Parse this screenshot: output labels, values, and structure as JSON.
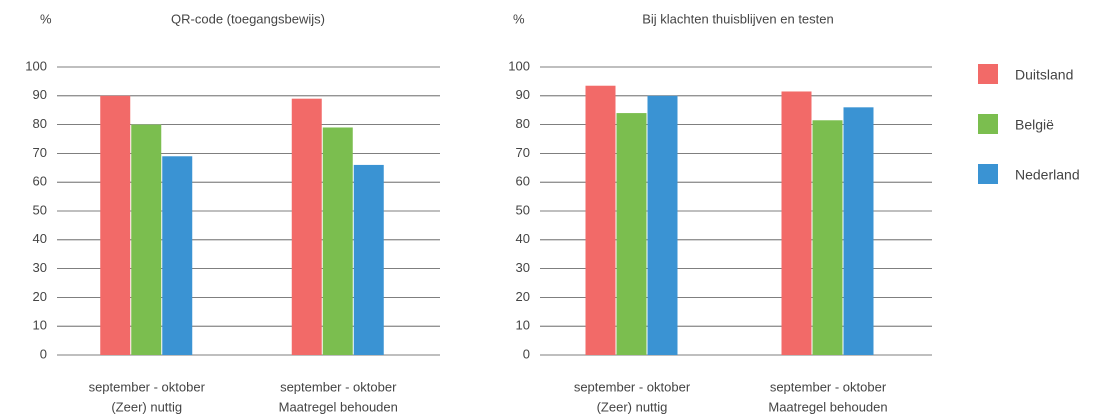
{
  "chart_data": [
    {
      "type": "bar",
      "title": "QR-code (toegangsbewijs)",
      "y_label": "%",
      "categories": [
        [
          "september - oktober",
          "(Zeer) nuttig"
        ],
        [
          "september - oktober",
          "Maatregel behouden"
        ]
      ],
      "series": [
        {
          "name": "Duitsland",
          "color": "#f26a68",
          "values": [
            90,
            89
          ]
        },
        {
          "name": "België",
          "color": "#7bbe4f",
          "values": [
            80,
            79
          ]
        },
        {
          "name": "Nederland",
          "color": "#3a93d3",
          "values": [
            69,
            66
          ]
        }
      ],
      "ylim": [
        0,
        100
      ],
      "yticks": [
        0,
        10,
        20,
        30,
        40,
        50,
        60,
        70,
        80,
        90,
        100
      ],
      "grid": true,
      "legend": "right"
    },
    {
      "type": "bar",
      "title": "Bij klachten thuisblijven en testen",
      "y_label": "%",
      "categories": [
        [
          "september - oktober",
          "(Zeer) nuttig"
        ],
        [
          "september - oktober",
          "Maatregel behouden"
        ]
      ],
      "series": [
        {
          "color": "#f26a68",
          "values": [
            93.5,
            91.5
          ]
        },
        {
          "color": "#7bbe4f",
          "values": [
            84,
            81.5
          ]
        },
        {
          "color": "#3a93d3",
          "values": [
            90,
            86
          ]
        }
      ],
      "ylim": [
        0,
        100
      ],
      "yticks": [
        0,
        10,
        20,
        30,
        40,
        50,
        60,
        70,
        80,
        90,
        100
      ],
      "grid": true
    }
  ]
}
